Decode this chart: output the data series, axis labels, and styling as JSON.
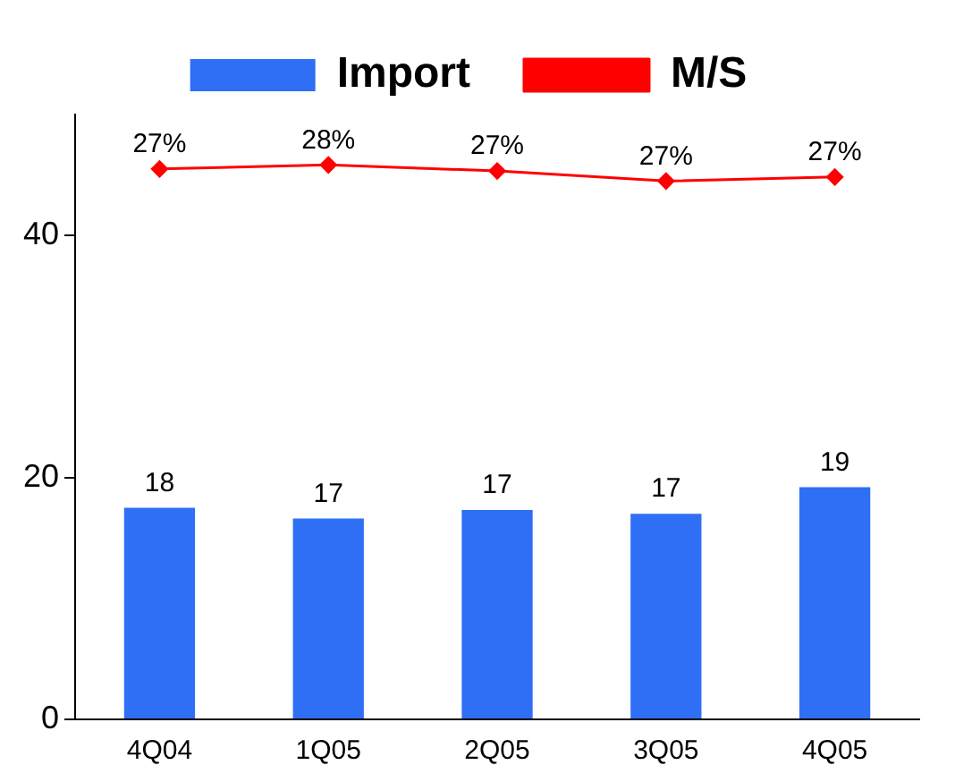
{
  "chart_data": {
    "type": "bar",
    "categories": [
      "4Q04",
      "1Q05",
      "2Q05",
      "3Q05",
      "4Q05"
    ],
    "series": [
      {
        "name": "Import",
        "color": "#2f6ff5",
        "values": [
          17.5,
          16.6,
          17.3,
          17.0,
          19.2
        ],
        "value_labels": [
          "18",
          "17",
          "17",
          "17",
          "19"
        ]
      },
      {
        "name": "M/S",
        "type": "line",
        "axis": "y2",
        "color": "#ff0000",
        "values": [
          27.3,
          27.5,
          27.2,
          26.7,
          26.9
        ],
        "value_labels": [
          "27%",
          "28%",
          "27%",
          "27%",
          "27%"
        ]
      }
    ],
    "ylim": [
      0,
      50
    ],
    "yticks": [
      0,
      20,
      40
    ],
    "y2lim": [
      0,
      30
    ],
    "grid": false,
    "legend": "top",
    "marker": "diamond",
    "line_style": "solid"
  }
}
